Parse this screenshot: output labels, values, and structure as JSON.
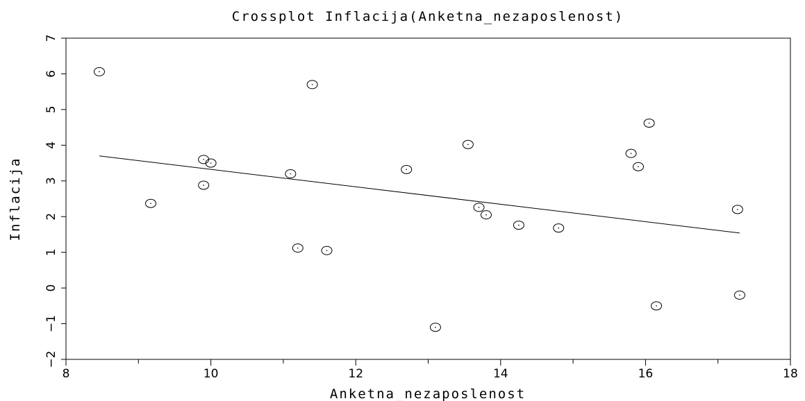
{
  "chart_data": {
    "type": "scatter",
    "title": "Crossplot Inflacija(Anketna_nezaposlenost)",
    "xlabel": "Anketna_nezaposlenost",
    "ylabel": "Inflacija",
    "xlim": [
      8,
      18
    ],
    "ylim": [
      -2,
      7
    ],
    "xticks": [
      8,
      10,
      12,
      14,
      16,
      18
    ],
    "yticks": [
      -2,
      -1,
      0,
      1,
      2,
      3,
      4,
      5,
      6,
      7
    ],
    "grid": false,
    "points": [
      {
        "x": 8.46,
        "y": 6.06
      },
      {
        "x": 9.17,
        "y": 2.37
      },
      {
        "x": 9.9,
        "y": 3.6
      },
      {
        "x": 10.0,
        "y": 3.5
      },
      {
        "x": 9.9,
        "y": 2.88
      },
      {
        "x": 11.1,
        "y": 3.2
      },
      {
        "x": 11.2,
        "y": 1.12
      },
      {
        "x": 11.4,
        "y": 5.7
      },
      {
        "x": 11.6,
        "y": 1.05
      },
      {
        "x": 12.7,
        "y": 3.32
      },
      {
        "x": 13.1,
        "y": -1.1
      },
      {
        "x": 13.55,
        "y": 4.02
      },
      {
        "x": 13.7,
        "y": 2.26
      },
      {
        "x": 13.8,
        "y": 2.05
      },
      {
        "x": 14.25,
        "y": 1.76
      },
      {
        "x": 14.8,
        "y": 1.68
      },
      {
        "x": 15.8,
        "y": 3.77
      },
      {
        "x": 15.9,
        "y": 3.4
      },
      {
        "x": 16.05,
        "y": 4.62
      },
      {
        "x": 16.15,
        "y": -0.5
      },
      {
        "x": 17.27,
        "y": 2.2
      },
      {
        "x": 17.3,
        "y": -0.2
      }
    ],
    "fit_line": {
      "x": [
        8.46,
        17.3
      ],
      "y": [
        3.7,
        1.54
      ]
    }
  }
}
